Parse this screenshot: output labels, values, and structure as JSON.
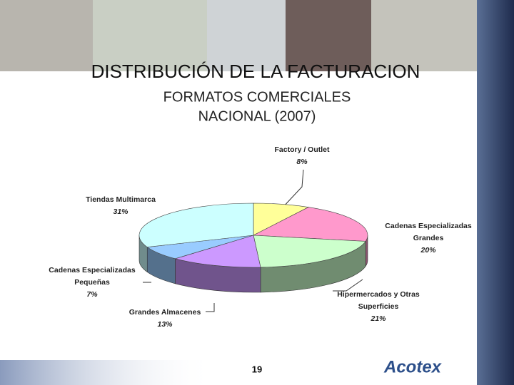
{
  "chart_data": {
    "type": "pie",
    "title": "DISTRIBUCIÓN DE LA FACTURACION",
    "subtitle": [
      "FORMATOS COMERCIALES",
      "NACIONAL (2007)"
    ],
    "categories": [
      "Factory / Outlet",
      "Cadenas Especializadas Grandes",
      "Hipermercados y Otras Superficies",
      "Grandes Almacenes",
      "Cadenas Especializadas Pequeñas",
      "Tiendas Multimarca"
    ],
    "values": [
      8,
      20,
      21,
      13,
      7,
      31
    ],
    "value_labels": [
      "8%",
      "20%",
      "21%",
      "13%",
      "7%",
      "31%"
    ],
    "colors": [
      "#ffff99",
      "#ff99cc",
      "#ccffcc",
      "#cc99ff",
      "#99ccff",
      "#ccffff"
    ]
  },
  "page_number": "19",
  "logo": "Acotex"
}
